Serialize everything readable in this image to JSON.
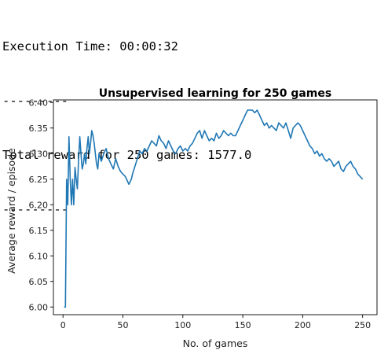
{
  "console": {
    "lines": [
      "Execution Time: 00:00:32",
      "---------",
      "Total reward for 250 games: 1577.0",
      "---------"
    ]
  },
  "chart_data": {
    "type": "line",
    "title": "Unsupervised learning for 250 games",
    "xlabel": "No. of games",
    "ylabel": "Average reward / episode",
    "xlim": [
      -8,
      262
    ],
    "ylim": [
      5.985,
      6.405
    ],
    "xticks": [
      0,
      50,
      100,
      150,
      200,
      250
    ],
    "yticks": [
      6.0,
      6.05,
      6.1,
      6.15,
      6.2,
      6.25,
      6.3,
      6.35,
      6.4
    ],
    "xtick_labels": [
      "0",
      "50",
      "100",
      "150",
      "200",
      "250"
    ],
    "ytick_labels": [
      "6.00",
      "6.05",
      "6.10",
      "6.15",
      "6.20",
      "6.25",
      "6.30",
      "6.35",
      "6.40"
    ],
    "grid": false,
    "color": "#1f77b4",
    "series": [
      {
        "x": [
          1,
          2,
          3,
          4,
          5,
          6,
          7,
          8,
          9,
          10,
          11,
          12,
          13,
          14,
          15,
          16,
          17,
          18,
          19,
          20,
          21,
          22,
          23,
          24,
          25,
          26,
          27,
          28,
          29,
          30,
          32,
          34,
          36,
          38,
          40,
          42,
          44,
          46,
          48,
          50,
          52,
          54,
          55,
          56,
          57,
          58,
          60,
          62,
          64,
          66,
          68,
          70,
          72,
          74,
          76,
          78,
          80,
          82,
          84,
          86,
          88,
          90,
          92,
          94,
          96,
          98,
          100,
          102,
          104,
          106,
          108,
          110,
          112,
          114,
          116,
          118,
          120,
          122,
          124,
          126,
          128,
          130,
          132,
          134,
          136,
          138,
          140,
          142,
          144,
          146,
          148,
          150,
          152,
          154,
          156,
          158,
          160,
          162,
          164,
          166,
          168,
          170,
          172,
          174,
          176,
          178,
          180,
          182,
          184,
          186,
          188,
          190,
          192,
          194,
          196,
          198,
          200,
          202,
          204,
          206,
          208,
          210,
          212,
          214,
          216,
          218,
          220,
          222,
          224,
          226,
          228,
          230,
          232,
          234,
          236,
          238,
          240,
          242,
          244,
          246,
          248,
          250
        ],
        "y": [
          6.0,
          6.0,
          6.25,
          6.2,
          6.333,
          6.25,
          6.2,
          6.25,
          6.2,
          6.273,
          6.25,
          6.231,
          6.286,
          6.333,
          6.3,
          6.27,
          6.28,
          6.3,
          6.28,
          6.31,
          6.333,
          6.3,
          6.32,
          6.345,
          6.335,
          6.32,
          6.3,
          6.28,
          6.27,
          6.3,
          6.285,
          6.3,
          6.31,
          6.29,
          6.28,
          6.27,
          6.29,
          6.275,
          6.265,
          6.26,
          6.255,
          6.245,
          6.24,
          6.245,
          6.25,
          6.26,
          6.275,
          6.29,
          6.305,
          6.3,
          6.31,
          6.305,
          6.315,
          6.325,
          6.32,
          6.315,
          6.335,
          6.325,
          6.32,
          6.31,
          6.325,
          6.315,
          6.305,
          6.3,
          6.31,
          6.315,
          6.305,
          6.31,
          6.305,
          6.315,
          6.32,
          6.33,
          6.34,
          6.345,
          6.33,
          6.345,
          6.335,
          6.325,
          6.33,
          6.325,
          6.34,
          6.33,
          6.335,
          6.345,
          6.34,
          6.335,
          6.34,
          6.335,
          6.335,
          6.345,
          6.355,
          6.365,
          6.375,
          6.385,
          6.385,
          6.385,
          6.38,
          6.385,
          6.375,
          6.365,
          6.355,
          6.36,
          6.35,
          6.355,
          6.35,
          6.345,
          6.36,
          6.355,
          6.35,
          6.36,
          6.345,
          6.33,
          6.35,
          6.355,
          6.36,
          6.355,
          6.345,
          6.335,
          6.325,
          6.315,
          6.31,
          6.3,
          6.305,
          6.295,
          6.3,
          6.29,
          6.285,
          6.29,
          6.285,
          6.275,
          6.28,
          6.285,
          6.27,
          6.265,
          6.275,
          6.28,
          6.285,
          6.275,
          6.27,
          6.26,
          6.255,
          6.25
        ]
      }
    ]
  }
}
